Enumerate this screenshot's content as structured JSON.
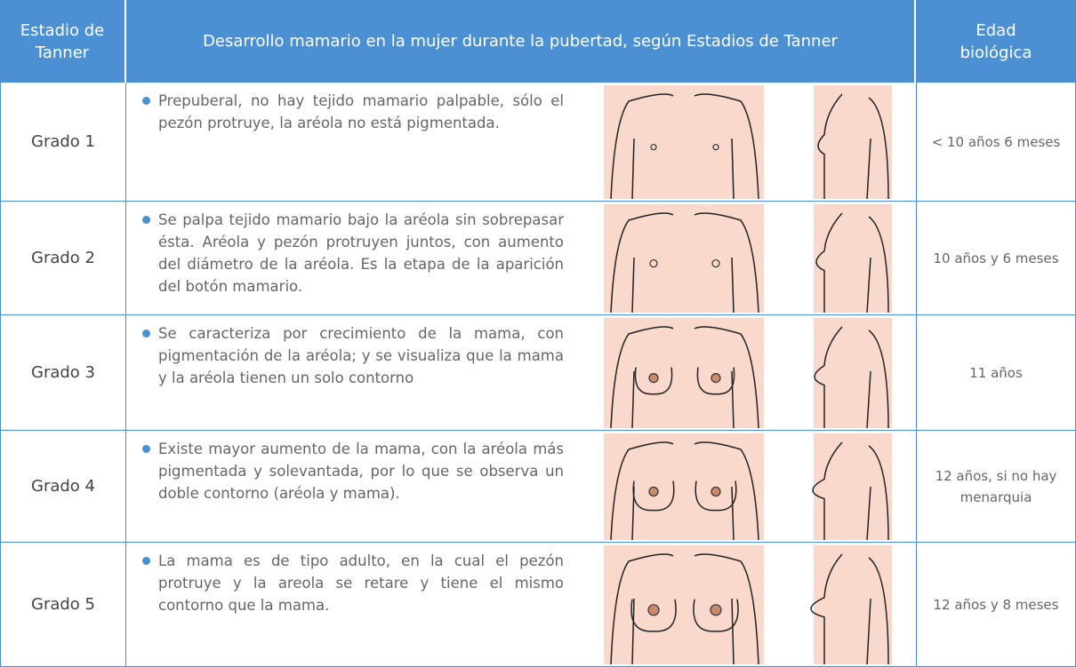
{
  "header": {
    "stage": "Estadio de Tanner",
    "title": "Desarrollo mamario en la mujer durante la pubertad, según Estadios de Tanner",
    "age": "Edad biológica"
  },
  "rows": [
    {
      "grade": "Grado 1",
      "description": "Prepuberal, no hay tejido mamario palpable, sólo el pezón protruye, la aréola no está pigmentada.",
      "age": "< 10 años 6 meses"
    },
    {
      "grade": "Grado 2",
      "description": "Se palpa tejido mamario bajo la aréola sin sobrepasar ésta. Aréola y pezón protruyen juntos, con aumento del diámetro de la aréola. Es la etapa de la aparición del botón mamario.",
      "age": "10 años y 6 meses"
    },
    {
      "grade": "Grado 3",
      "description": "Se caracteriza por crecimiento de la mama, con pigmentación de la aréola; y se visualiza que la mama y la aréola tienen un solo contorno",
      "age": "11 años"
    },
    {
      "grade": "Grado 4",
      "description": "Existe mayor aumento de la mama, con la aréola más pigmentada y solevantada, por lo que se observa un doble contorno (aréola y mama).",
      "age": "12 años, si no hay menarquia"
    },
    {
      "grade": "Grado 5",
      "description": "La mama es de tipo adulto, en la cual el pezón protruye y la areola se retare y tiene el mismo contorno que la mama.",
      "age": "12 años y 8 meses"
    }
  ]
}
